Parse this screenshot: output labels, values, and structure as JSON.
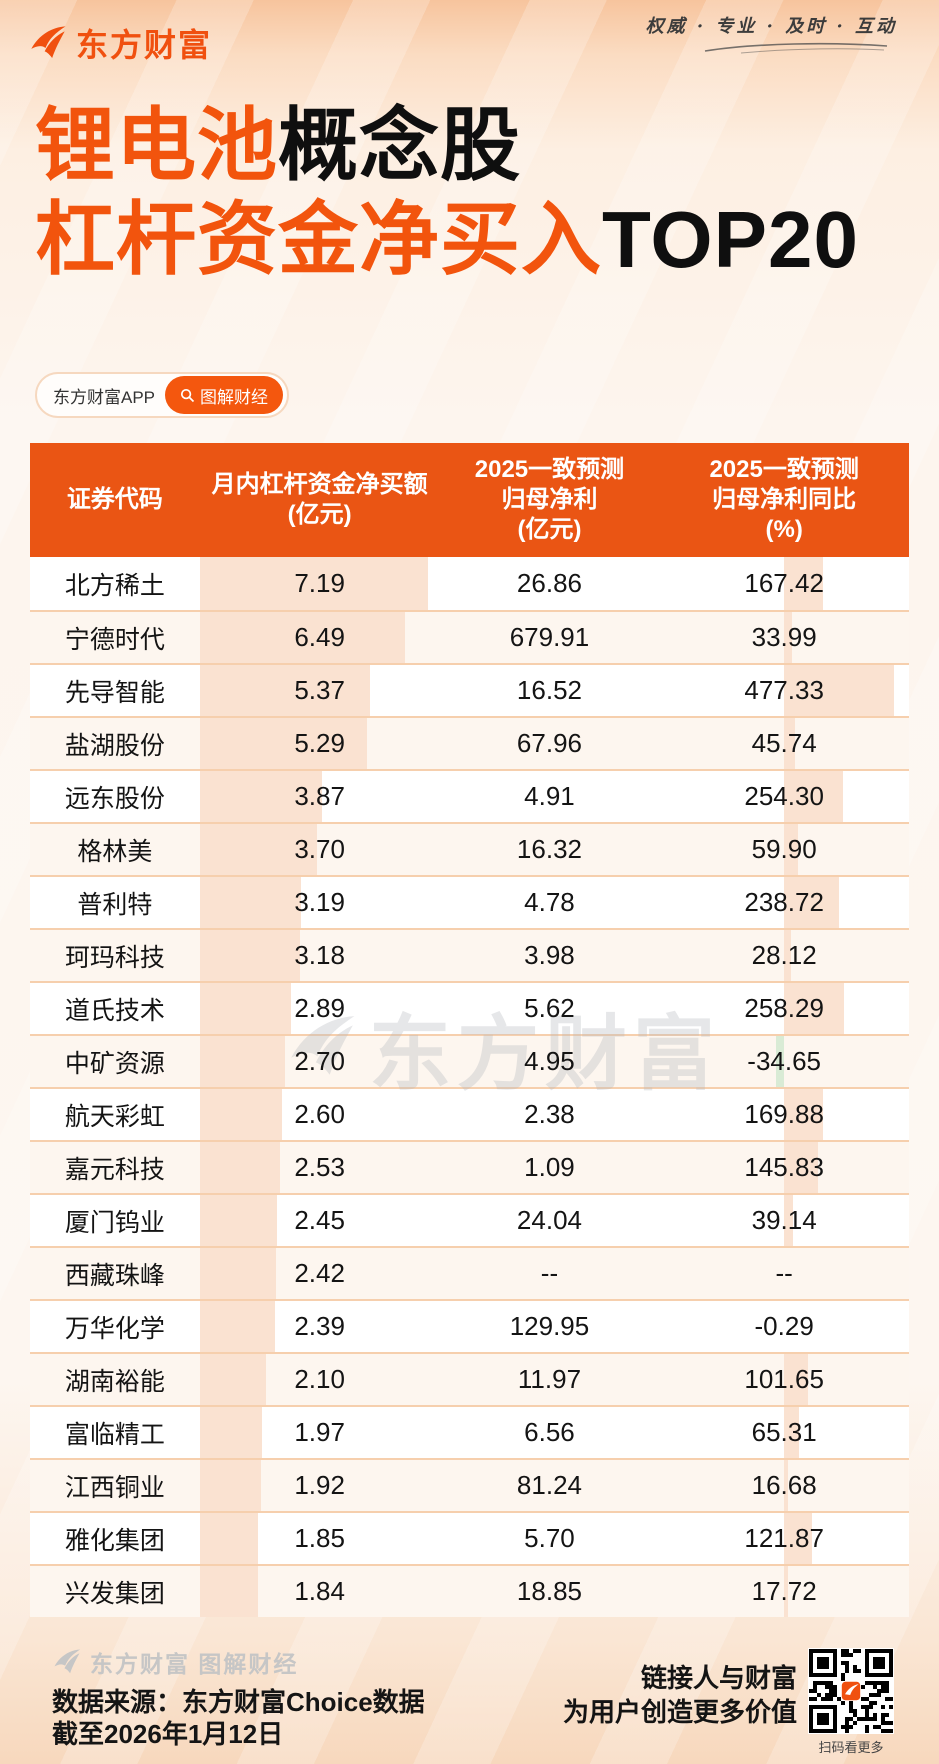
{
  "brand": {
    "logo_text": "东方财富",
    "tagline": "权威 · 专业 · 及时 · 互动"
  },
  "title": {
    "line1_highlight": "锂电池",
    "line1_rest": "概念股",
    "line2_highlight": "杠杆资金净买入",
    "line2_rest": "TOP20"
  },
  "badges": {
    "app_label": "东方财富APP",
    "topic_label": "图解财经"
  },
  "table": {
    "header": [
      {
        "lines": [
          "证券代码"
        ]
      },
      {
        "lines": [
          "月内杠杆资金净买额",
          "(亿元)"
        ]
      },
      {
        "lines": [
          "2025一致预测",
          "归母净利",
          "(亿元)"
        ]
      },
      {
        "lines": [
          "2025一致预测",
          "归母净利同比",
          "(%)"
        ]
      }
    ],
    "rows": [
      {
        "name": "北方稀土",
        "net_buy": "7.19",
        "profit": "26.86",
        "yoy": "167.42"
      },
      {
        "name": "宁德时代",
        "net_buy": "6.49",
        "profit": "679.91",
        "yoy": "33.99"
      },
      {
        "name": "先导智能",
        "net_buy": "5.37",
        "profit": "16.52",
        "yoy": "477.33"
      },
      {
        "name": "盐湖股份",
        "net_buy": "5.29",
        "profit": "67.96",
        "yoy": "45.74"
      },
      {
        "name": "远东股份",
        "net_buy": "3.87",
        "profit": "4.91",
        "yoy": "254.30"
      },
      {
        "name": "格林美",
        "net_buy": "3.70",
        "profit": "16.32",
        "yoy": "59.90"
      },
      {
        "name": "普利特",
        "net_buy": "3.19",
        "profit": "4.78",
        "yoy": "238.72"
      },
      {
        "name": "珂玛科技",
        "net_buy": "3.18",
        "profit": "3.98",
        "yoy": "28.12"
      },
      {
        "name": "道氏技术",
        "net_buy": "2.89",
        "profit": "5.62",
        "yoy": "258.29"
      },
      {
        "name": "中矿资源",
        "net_buy": "2.70",
        "profit": "4.95",
        "yoy": "-34.65"
      },
      {
        "name": "航天彩虹",
        "net_buy": "2.60",
        "profit": "2.38",
        "yoy": "169.88"
      },
      {
        "name": "嘉元科技",
        "net_buy": "2.53",
        "profit": "1.09",
        "yoy": "145.83"
      },
      {
        "name": "厦门钨业",
        "net_buy": "2.45",
        "profit": "24.04",
        "yoy": "39.14"
      },
      {
        "name": "西藏珠峰",
        "net_buy": "2.42",
        "profit": "--",
        "yoy": "--"
      },
      {
        "name": "万华化学",
        "net_buy": "2.39",
        "profit": "129.95",
        "yoy": "-0.29"
      },
      {
        "name": "湖南裕能",
        "net_buy": "2.10",
        "profit": "11.97",
        "yoy": "101.65"
      },
      {
        "name": "富临精工",
        "net_buy": "1.97",
        "profit": "6.56",
        "yoy": "65.31"
      },
      {
        "name": "江西铜业",
        "net_buy": "1.92",
        "profit": "81.24",
        "yoy": "16.68"
      },
      {
        "name": "雅化集团",
        "net_buy": "1.85",
        "profit": "5.70",
        "yoy": "121.87"
      },
      {
        "name": "兴发集团",
        "net_buy": "1.84",
        "profit": "18.85",
        "yoy": "17.72"
      }
    ],
    "bar_scales": {
      "net_buy_max": 7.19,
      "net_buy_max_pct": 95,
      "yoy_max": 477.33,
      "yoy_max_pct": 44
    }
  },
  "watermark": {
    "text": "东方财富"
  },
  "footer": {
    "brand_line": "东方财富 图解财经",
    "source": "数据来源：东方财富Choice数据",
    "as_of": "截至2026年1月12日",
    "slogan_line1": "链接人与财富",
    "slogan_line2": "为用户创造更多价值",
    "qr_caption": "扫码看更多"
  },
  "colors": {
    "brand_orange": "#F0500F",
    "header_orange": "#EA5514",
    "title_orange": "#F2540D",
    "bar_peach": "#FAE2D1",
    "bar_green": "#D9EBD5",
    "row_alt_bg": "#FDF6EF",
    "separator": "#F6CFAD",
    "text_black": "#141414"
  },
  "chart_data": {
    "type": "table",
    "title": "锂电池概念股杠杆资金净买入TOP20",
    "columns": [
      "证券代码",
      "月内杠杆资金净买额(亿元)",
      "2025一致预测归母净利(亿元)",
      "2025一致预测归母净利同比(%)"
    ],
    "rows": [
      [
        "北方稀土",
        7.19,
        26.86,
        167.42
      ],
      [
        "宁德时代",
        6.49,
        679.91,
        33.99
      ],
      [
        "先导智能",
        5.37,
        16.52,
        477.33
      ],
      [
        "盐湖股份",
        5.29,
        67.96,
        45.74
      ],
      [
        "远东股份",
        3.87,
        4.91,
        254.3
      ],
      [
        "格林美",
        3.7,
        16.32,
        59.9
      ],
      [
        "普利特",
        3.19,
        4.78,
        238.72
      ],
      [
        "珂玛科技",
        3.18,
        3.98,
        28.12
      ],
      [
        "道氏技术",
        2.89,
        5.62,
        258.29
      ],
      [
        "中矿资源",
        2.7,
        4.95,
        -34.65
      ],
      [
        "航天彩虹",
        2.6,
        2.38,
        169.88
      ],
      [
        "嘉元科技",
        2.53,
        1.09,
        145.83
      ],
      [
        "厦门钨业",
        2.45,
        24.04,
        39.14
      ],
      [
        "西藏珠峰",
        2.42,
        null,
        null
      ],
      [
        "万华化学",
        2.39,
        129.95,
        -0.29
      ],
      [
        "湖南裕能",
        2.1,
        11.97,
        101.65
      ],
      [
        "富临精工",
        1.97,
        6.56,
        65.31
      ],
      [
        "江西铜业",
        1.92,
        81.24,
        16.68
      ],
      [
        "雅化集团",
        1.85,
        5.7,
        121.87
      ],
      [
        "兴发集团",
        1.84,
        18.85,
        17.72
      ]
    ],
    "bars": {
      "net_buy": {
        "anchor": "left",
        "max_value": 7.19
      },
      "yoy": {
        "anchor": "column-center",
        "max_value": 477.33,
        "negative_color": "green"
      }
    }
  }
}
